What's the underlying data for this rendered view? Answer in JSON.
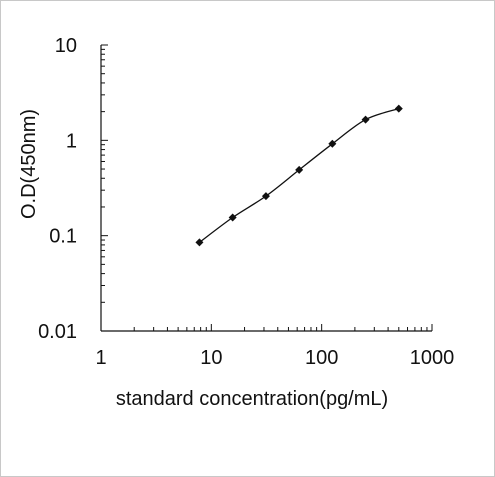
{
  "chart_data": {
    "type": "scatter",
    "title": "",
    "xlabel": "standard concentration(pg/mL)",
    "ylabel": "O.D(450nm)",
    "xscale": "log",
    "yscale": "log",
    "xlim": [
      1,
      1000
    ],
    "ylim": [
      0.01,
      10
    ],
    "x_tick_labels": [
      "1",
      "10",
      "100",
      "1000"
    ],
    "y_tick_labels": [
      "10",
      "1",
      "0.1",
      "0.01"
    ],
    "grid": false,
    "legend": "none",
    "series": [
      {
        "marker": "diamond",
        "line": "smooth fitted curve",
        "x": [
          7.8,
          15.6,
          31.25,
          62.5,
          125,
          250,
          500
        ],
        "y": [
          0.085,
          0.155,
          0.26,
          0.49,
          0.92,
          1.65,
          2.15
        ]
      }
    ],
    "colors": {
      "marker": "#111111",
      "line": "#111111",
      "axis": "#111111"
    }
  }
}
